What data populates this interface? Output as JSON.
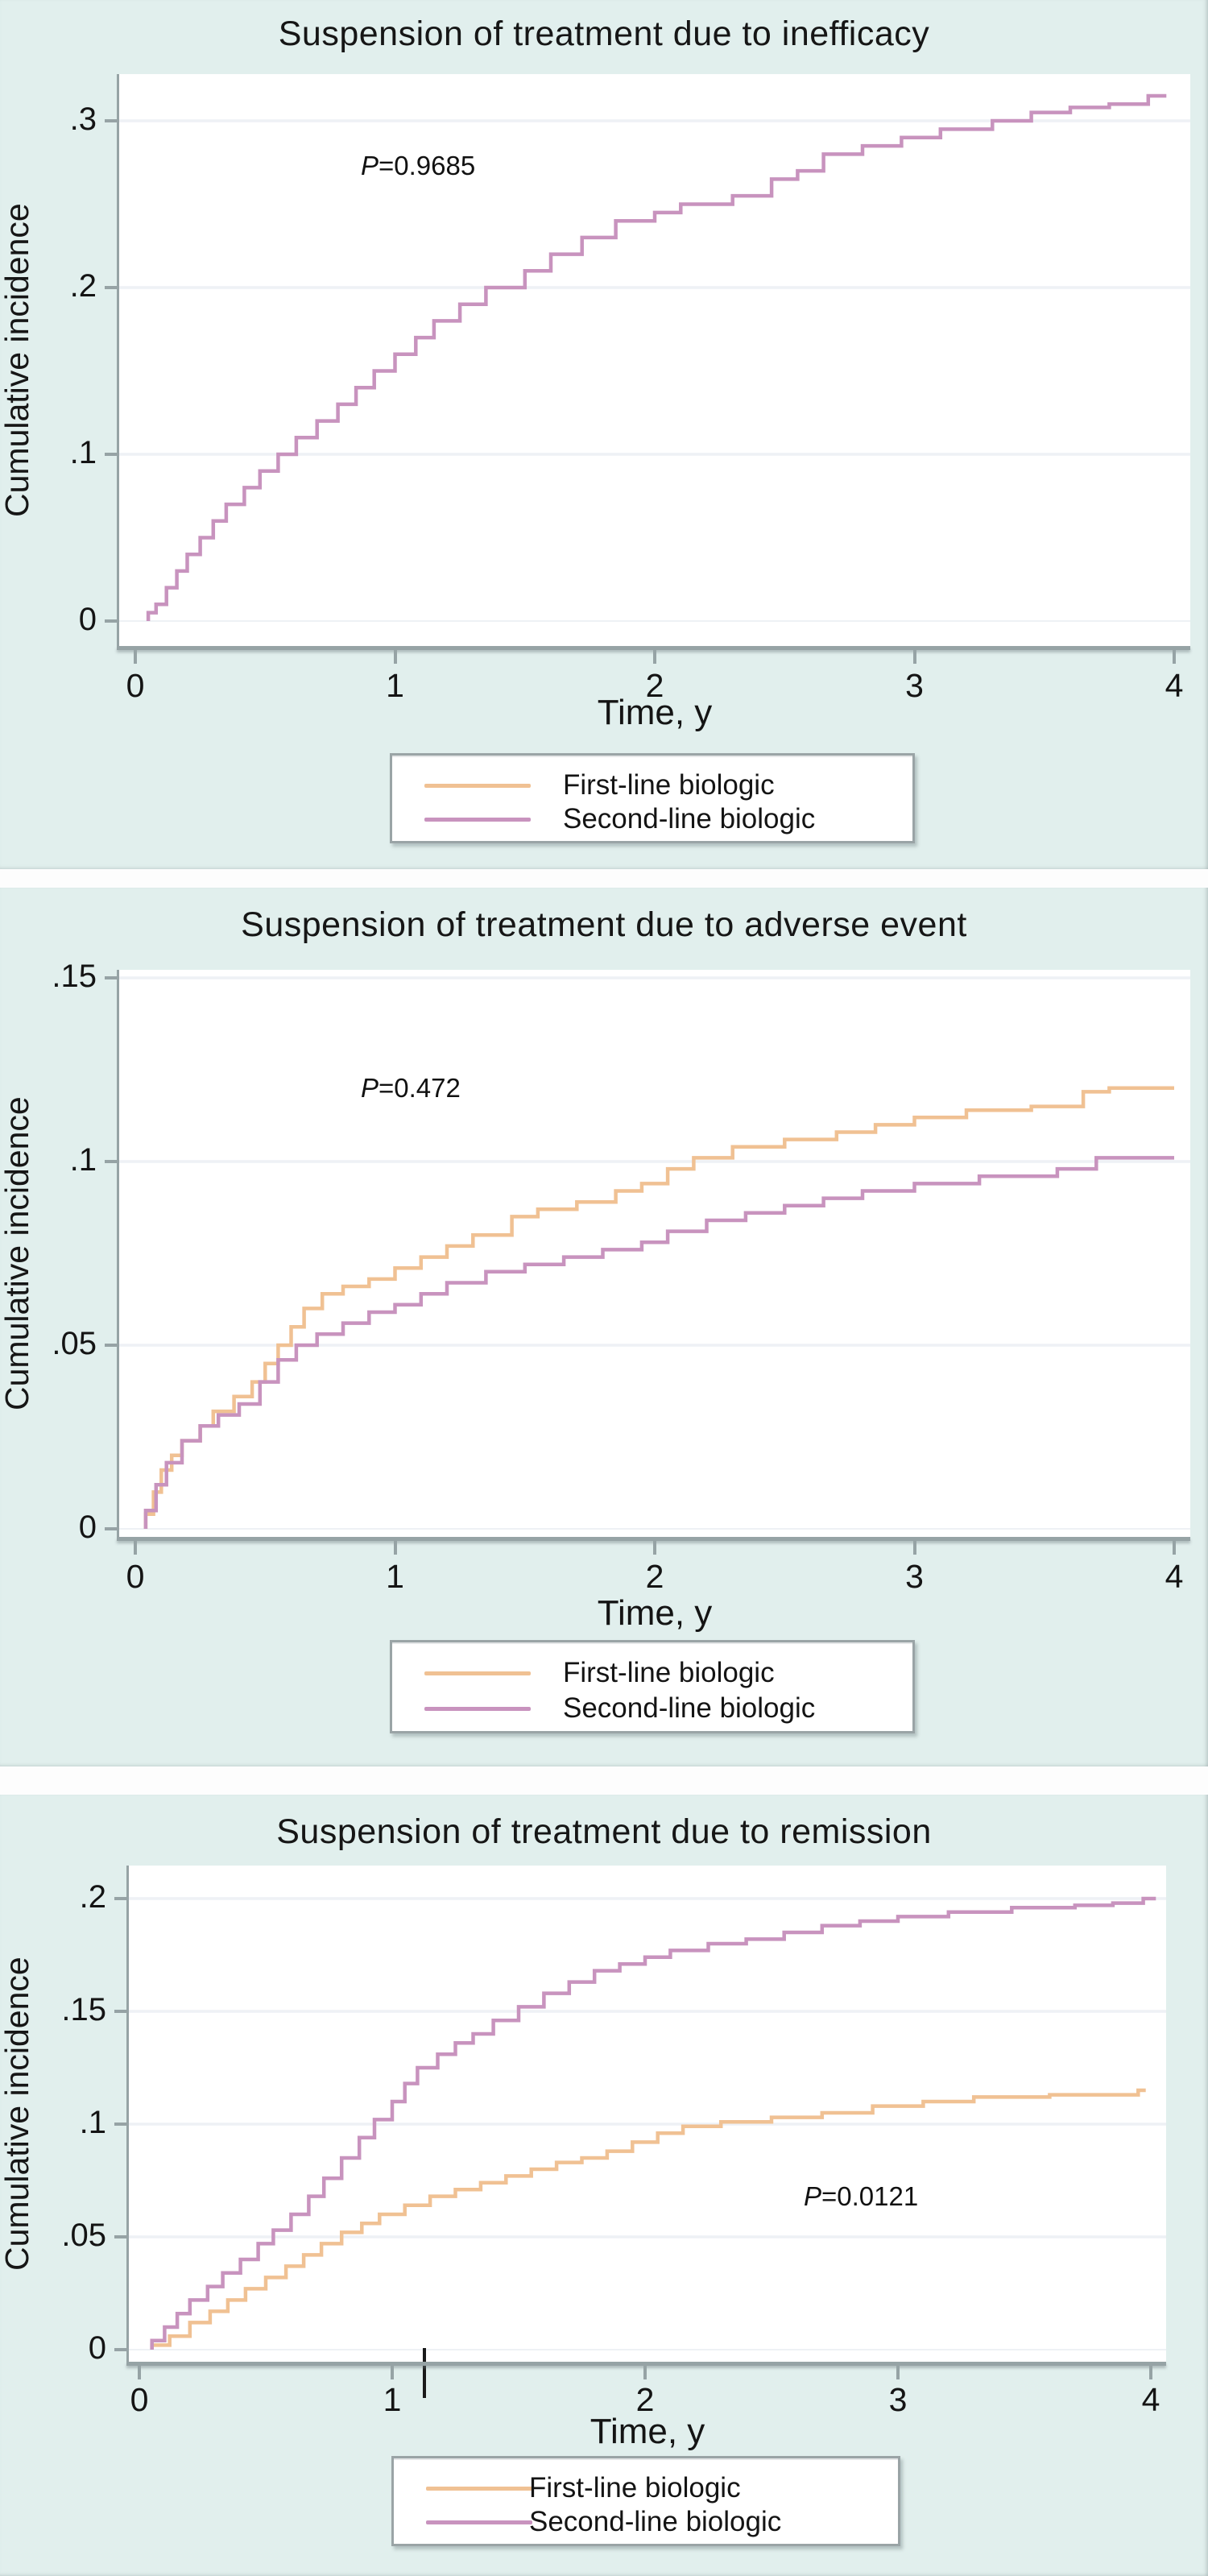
{
  "figure": {
    "xlabel": "Time, y",
    "ylabel": "Cumulative incidence",
    "legend_labels": [
      "First-line biologic",
      "Second-line biologic"
    ],
    "colors": {
      "first_line": "#F0C193",
      "second_line": "#C893BE",
      "panel_background": "#E1EFED",
      "plot_background": "#FFFFFF",
      "axis": "#96A3A5",
      "gridline": "#EEF1F5",
      "text": "#141414"
    }
  },
  "chart_data": [
    {
      "type": "line",
      "subtype": "cumulative-incidence-step",
      "title": "Suspension of treatment due to inefficacy",
      "xlabel": "Time, y",
      "ylabel": "Cumulative incidence",
      "p_italic": "P",
      "p_rest": "=0.9685",
      "x_ticks": [
        0,
        1,
        2,
        3,
        4
      ],
      "y_ticks": [
        0,
        0.1,
        0.2,
        0.3
      ],
      "y_tick_labels": [
        "0",
        ".1",
        ".2",
        ".3"
      ],
      "xlim": [
        0,
        4.12
      ],
      "ylim": [
        0,
        0.328
      ],
      "grid": true,
      "legend_position": "bottom-center",
      "legend": [
        "First-line biologic",
        "Second-line biologic"
      ],
      "series": [
        {
          "name": "Second-line biologic",
          "color_role": "second_line",
          "values": [
            [
              0.05,
              0.005
            ],
            [
              0.08,
              0.01
            ],
            [
              0.12,
              0.02
            ],
            [
              0.16,
              0.03
            ],
            [
              0.2,
              0.04
            ],
            [
              0.25,
              0.05
            ],
            [
              0.3,
              0.06
            ],
            [
              0.35,
              0.07
            ],
            [
              0.42,
              0.08
            ],
            [
              0.48,
              0.09
            ],
            [
              0.55,
              0.1
            ],
            [
              0.62,
              0.11
            ],
            [
              0.7,
              0.12
            ],
            [
              0.78,
              0.13
            ],
            [
              0.85,
              0.14
            ],
            [
              0.92,
              0.15
            ],
            [
              1.0,
              0.16
            ],
            [
              1.08,
              0.17
            ],
            [
              1.15,
              0.18
            ],
            [
              1.25,
              0.19
            ],
            [
              1.35,
              0.2
            ],
            [
              1.5,
              0.21
            ],
            [
              1.6,
              0.22
            ],
            [
              1.72,
              0.23
            ],
            [
              1.85,
              0.24
            ],
            [
              2.0,
              0.245
            ],
            [
              2.1,
              0.25
            ],
            [
              2.3,
              0.255
            ],
            [
              2.45,
              0.265
            ],
            [
              2.55,
              0.27
            ],
            [
              2.65,
              0.28
            ],
            [
              2.8,
              0.285
            ],
            [
              2.95,
              0.29
            ],
            [
              3.1,
              0.295
            ],
            [
              3.3,
              0.3
            ],
            [
              3.45,
              0.305
            ],
            [
              3.6,
              0.308
            ],
            [
              3.75,
              0.31
            ],
            [
              3.9,
              0.315
            ]
          ],
          "end_x": 3.97
        }
      ]
    },
    {
      "type": "line",
      "subtype": "cumulative-incidence-step",
      "title": "Suspension of treatment due to adverse event",
      "xlabel": "Time, y",
      "ylabel": "Cumulative incidence",
      "p_italic": "P",
      "p_rest": "=0.472",
      "x_ticks": [
        0,
        1,
        2,
        3,
        4
      ],
      "y_ticks": [
        0,
        0.05,
        0.1,
        0.15
      ],
      "y_tick_labels": [
        "0",
        ".05",
        ".1",
        ".15"
      ],
      "xlim": [
        0,
        4.12
      ],
      "ylim": [
        0,
        0.152
      ],
      "grid": true,
      "legend_position": "bottom-center",
      "legend": [
        "First-line biologic",
        "Second-line biologic"
      ],
      "series": [
        {
          "name": "First-line biologic",
          "color_role": "first_line",
          "values": [
            [
              0.04,
              0.004
            ],
            [
              0.07,
              0.01
            ],
            [
              0.1,
              0.016
            ],
            [
              0.14,
              0.02
            ],
            [
              0.18,
              0.024
            ],
            [
              0.25,
              0.028
            ],
            [
              0.3,
              0.032
            ],
            [
              0.38,
              0.036
            ],
            [
              0.45,
              0.04
            ],
            [
              0.5,
              0.045
            ],
            [
              0.55,
              0.05
            ],
            [
              0.6,
              0.055
            ],
            [
              0.65,
              0.06
            ],
            [
              0.72,
              0.064
            ],
            [
              0.8,
              0.066
            ],
            [
              0.9,
              0.068
            ],
            [
              1.0,
              0.071
            ],
            [
              1.1,
              0.074
            ],
            [
              1.2,
              0.077
            ],
            [
              1.3,
              0.08
            ],
            [
              1.45,
              0.085
            ],
            [
              1.55,
              0.087
            ],
            [
              1.7,
              0.089
            ],
            [
              1.85,
              0.092
            ],
            [
              1.95,
              0.094
            ],
            [
              2.05,
              0.098
            ],
            [
              2.15,
              0.101
            ],
            [
              2.3,
              0.104
            ],
            [
              2.5,
              0.106
            ],
            [
              2.7,
              0.108
            ],
            [
              2.85,
              0.11
            ],
            [
              3.0,
              0.112
            ],
            [
              3.2,
              0.114
            ],
            [
              3.45,
              0.115
            ],
            [
              3.65,
              0.119
            ],
            [
              3.75,
              0.12
            ]
          ],
          "end_x": 4.0
        },
        {
          "name": "Second-line biologic",
          "color_role": "second_line",
          "values": [
            [
              0.04,
              0.005
            ],
            [
              0.08,
              0.012
            ],
            [
              0.12,
              0.018
            ],
            [
              0.18,
              0.024
            ],
            [
              0.25,
              0.028
            ],
            [
              0.32,
              0.031
            ],
            [
              0.4,
              0.034
            ],
            [
              0.48,
              0.04
            ],
            [
              0.55,
              0.046
            ],
            [
              0.62,
              0.05
            ],
            [
              0.7,
              0.053
            ],
            [
              0.8,
              0.056
            ],
            [
              0.9,
              0.059
            ],
            [
              1.0,
              0.061
            ],
            [
              1.1,
              0.064
            ],
            [
              1.2,
              0.067
            ],
            [
              1.35,
              0.07
            ],
            [
              1.5,
              0.072
            ],
            [
              1.65,
              0.074
            ],
            [
              1.8,
              0.076
            ],
            [
              1.95,
              0.078
            ],
            [
              2.05,
              0.081
            ],
            [
              2.2,
              0.084
            ],
            [
              2.35,
              0.086
            ],
            [
              2.5,
              0.088
            ],
            [
              2.65,
              0.09
            ],
            [
              2.8,
              0.092
            ],
            [
              3.0,
              0.094
            ],
            [
              3.25,
              0.096
            ],
            [
              3.55,
              0.098
            ],
            [
              3.7,
              0.101
            ]
          ],
          "end_x": 4.0
        }
      ]
    },
    {
      "type": "line",
      "subtype": "cumulative-incidence-step",
      "title": "Suspension of treatment due to remission",
      "xlabel": "Time, y",
      "ylabel": "Cumulative incidence",
      "p_italic": "P",
      "p_rest": "=0.0121",
      "x_ticks": [
        0,
        1,
        2,
        3,
        4
      ],
      "y_ticks": [
        0,
        0.05,
        0.1,
        0.15,
        0.2
      ],
      "y_tick_labels": [
        "0",
        ".05",
        ".1",
        ".15",
        ".2"
      ],
      "xlim": [
        0,
        4.1
      ],
      "ylim": [
        0,
        0.215
      ],
      "grid": true,
      "legend_position": "bottom-center",
      "legend": [
        "First-line biologic",
        "Second-line biologic"
      ],
      "series": [
        {
          "name": "First-line biologic",
          "color_role": "first_line",
          "values": [
            [
              0.05,
              0.002
            ],
            [
              0.12,
              0.006
            ],
            [
              0.2,
              0.012
            ],
            [
              0.28,
              0.017
            ],
            [
              0.35,
              0.022
            ],
            [
              0.42,
              0.027
            ],
            [
              0.5,
              0.032
            ],
            [
              0.58,
              0.037
            ],
            [
              0.65,
              0.042
            ],
            [
              0.72,
              0.047
            ],
            [
              0.8,
              0.052
            ],
            [
              0.88,
              0.056
            ],
            [
              0.95,
              0.06
            ],
            [
              1.05,
              0.064
            ],
            [
              1.15,
              0.068
            ],
            [
              1.25,
              0.071
            ],
            [
              1.35,
              0.074
            ],
            [
              1.45,
              0.077
            ],
            [
              1.55,
              0.08
            ],
            [
              1.65,
              0.083
            ],
            [
              1.75,
              0.085
            ],
            [
              1.85,
              0.088
            ],
            [
              1.95,
              0.092
            ],
            [
              2.05,
              0.096
            ],
            [
              2.15,
              0.099
            ],
            [
              2.3,
              0.101
            ],
            [
              2.5,
              0.103
            ],
            [
              2.7,
              0.105
            ],
            [
              2.9,
              0.108
            ],
            [
              3.1,
              0.11
            ],
            [
              3.3,
              0.112
            ],
            [
              3.6,
              0.113
            ],
            [
              3.9,
              0.113
            ],
            [
              3.95,
              0.115
            ]
          ],
          "end_x": 3.98
        },
        {
          "name": "Second-line biologic",
          "color_role": "second_line",
          "values": [
            [
              0.05,
              0.004
            ],
            [
              0.1,
              0.01
            ],
            [
              0.15,
              0.016
            ],
            [
              0.2,
              0.022
            ],
            [
              0.27,
              0.028
            ],
            [
              0.33,
              0.034
            ],
            [
              0.4,
              0.04
            ],
            [
              0.47,
              0.047
            ],
            [
              0.53,
              0.053
            ],
            [
              0.6,
              0.06
            ],
            [
              0.67,
              0.068
            ],
            [
              0.73,
              0.076
            ],
            [
              0.8,
              0.085
            ],
            [
              0.87,
              0.094
            ],
            [
              0.93,
              0.102
            ],
            [
              1.0,
              0.11
            ],
            [
              1.05,
              0.118
            ],
            [
              1.1,
              0.125
            ],
            [
              1.18,
              0.131
            ],
            [
              1.25,
              0.136
            ],
            [
              1.32,
              0.14
            ],
            [
              1.4,
              0.146
            ],
            [
              1.5,
              0.152
            ],
            [
              1.6,
              0.158
            ],
            [
              1.7,
              0.163
            ],
            [
              1.8,
              0.168
            ],
            [
              1.9,
              0.171
            ],
            [
              2.0,
              0.174
            ],
            [
              2.1,
              0.177
            ],
            [
              2.25,
              0.18
            ],
            [
              2.4,
              0.182
            ],
            [
              2.55,
              0.185
            ],
            [
              2.7,
              0.188
            ],
            [
              2.85,
              0.19
            ],
            [
              3.0,
              0.192
            ],
            [
              3.2,
              0.194
            ],
            [
              3.45,
              0.196
            ],
            [
              3.7,
              0.197
            ],
            [
              3.85,
              0.198
            ],
            [
              3.97,
              0.2
            ]
          ],
          "end_x": 4.02
        }
      ]
    }
  ]
}
